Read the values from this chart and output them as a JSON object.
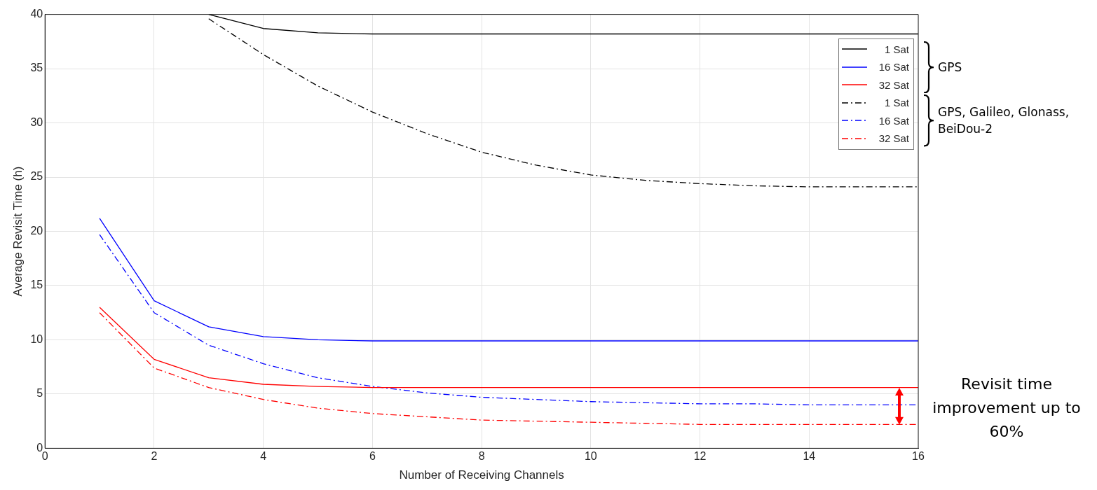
{
  "chart_data": {
    "type": "line",
    "xlabel": "Number of Receiving Channels",
    "ylabel": "Average Revisit Time (h)",
    "x": [
      1,
      2,
      3,
      4,
      5,
      6,
      7,
      8,
      9,
      10,
      11,
      12,
      13,
      14,
      15,
      16
    ],
    "series": [
      {
        "name": "1 Sat",
        "color": "#000000",
        "line_style": "solid",
        "values": [
          null,
          null,
          40,
          38.7,
          38.3,
          38.2,
          38.2,
          38.2,
          38.2,
          38.2,
          38.2,
          38.2,
          38.2,
          38.2,
          38.2,
          38.2
        ]
      },
      {
        "name": "16 Sat",
        "color": "#0000ff",
        "line_style": "solid",
        "values": [
          21.2,
          13.6,
          11.2,
          10.3,
          10.0,
          9.9,
          9.9,
          9.9,
          9.9,
          9.9,
          9.9,
          9.9,
          9.9,
          9.9,
          9.9,
          9.9
        ]
      },
      {
        "name": "32 Sat",
        "color": "#ff0000",
        "line_style": "solid",
        "values": [
          13.0,
          8.2,
          6.5,
          5.9,
          5.7,
          5.6,
          5.6,
          5.6,
          5.6,
          5.6,
          5.6,
          5.6,
          5.6,
          5.6,
          5.6,
          5.6
        ]
      },
      {
        "name": "1 Sat",
        "color": "#000000",
        "line_style": "dashed",
        "values": [
          null,
          null,
          39.6,
          36.3,
          33.4,
          31.0,
          29.0,
          27.3,
          26.1,
          25.2,
          24.7,
          24.4,
          24.2,
          24.1,
          24.1,
          24.1
        ]
      },
      {
        "name": "16 Sat",
        "color": "#0000ff",
        "line_style": "dashed",
        "values": [
          19.7,
          12.5,
          9.5,
          7.8,
          6.5,
          5.7,
          5.1,
          4.7,
          4.5,
          4.3,
          4.2,
          4.1,
          4.1,
          4.0,
          4.0,
          4.0
        ]
      },
      {
        "name": "32 Sat",
        "color": "#ff0000",
        "line_style": "dashed",
        "values": [
          12.5,
          7.4,
          5.6,
          4.5,
          3.7,
          3.2,
          2.9,
          2.6,
          2.5,
          2.4,
          2.3,
          2.2,
          2.2,
          2.2,
          2.2,
          2.2
        ]
      }
    ],
    "xlim": [
      0,
      16
    ],
    "xticks": [
      0,
      2,
      4,
      6,
      8,
      10,
      12,
      14,
      16
    ],
    "ylim": [
      0,
      40
    ],
    "yticks": [
      0,
      5,
      10,
      15,
      20,
      25,
      30,
      35,
      40
    ],
    "grid": true,
    "legend": "top right",
    "marker": "none",
    "annotations": [
      "GPS",
      "GPS, Galileo, Glonass, BeiDou-2",
      "Revisit time improvement up to 60%"
    ]
  }
}
